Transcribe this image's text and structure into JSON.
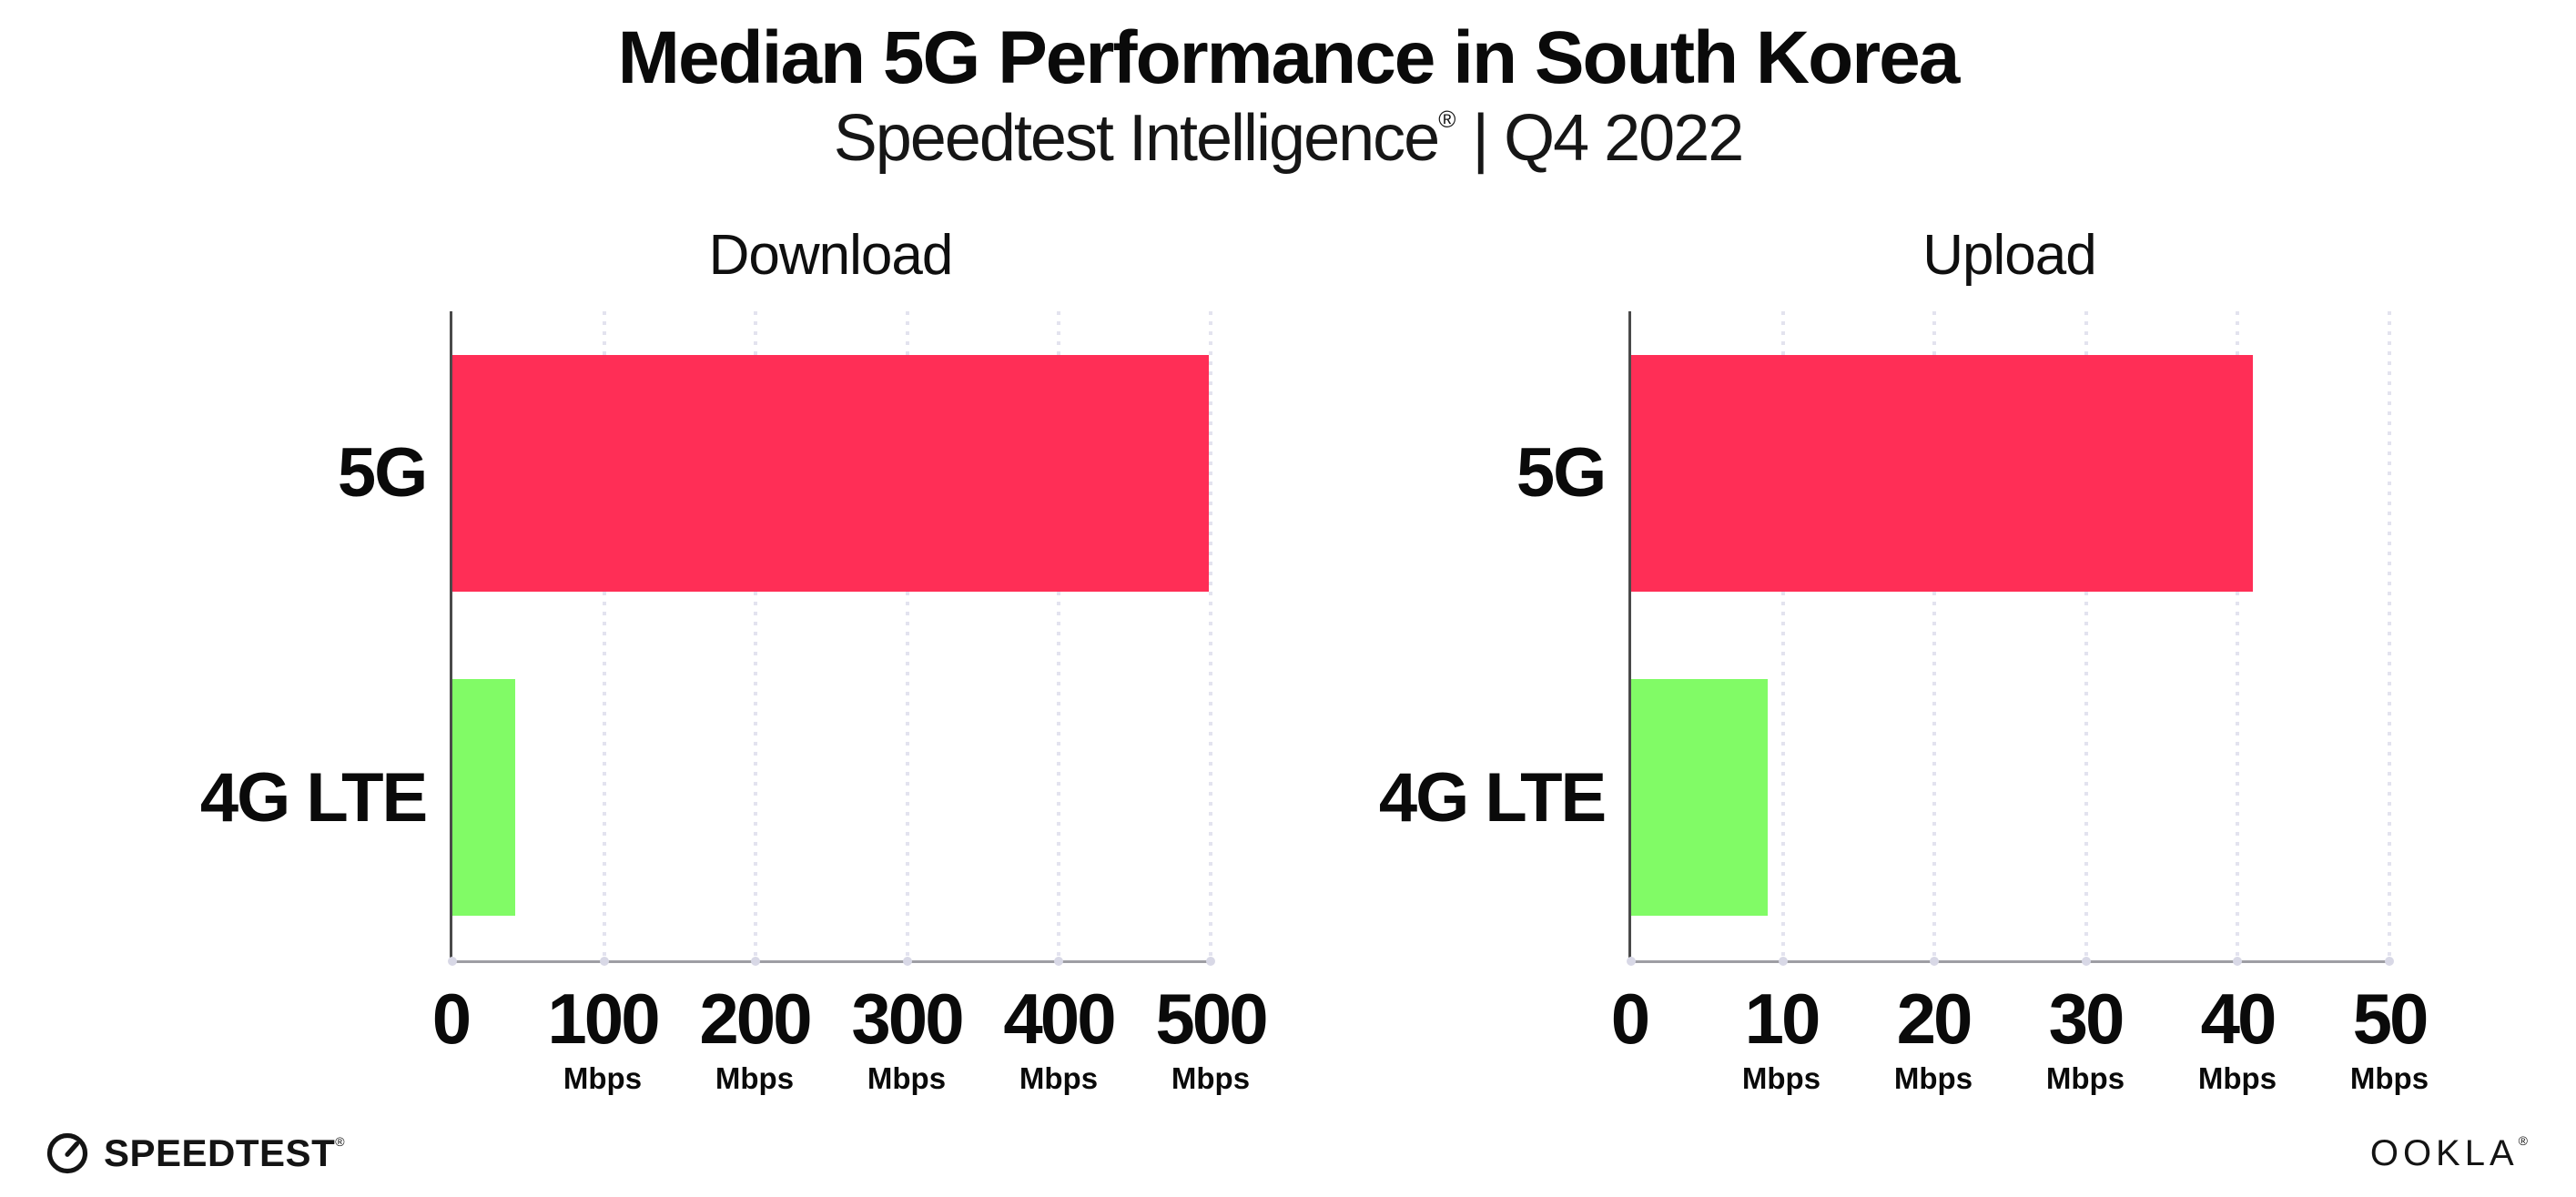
{
  "header": {
    "title": "Median 5G Performance in South Korea",
    "subtitle_brand": "Speedtest Intelligence",
    "subtitle_reg": "®",
    "subtitle_rest": " | Q4 2022"
  },
  "colors": {
    "bar_5g": "#FF2E56",
    "bar_4g_lte": "#81FB66",
    "gridline": "#E3E3EF",
    "x_axis": "#9E9EA4",
    "y_axis": "#4A4A4A",
    "background": "#FFFFFF",
    "text": "#0A0A0A"
  },
  "chart_data": [
    {
      "type": "bar",
      "orientation": "horizontal",
      "title": "Download",
      "categories": [
        "5G",
        "4G LTE"
      ],
      "values": [
        499,
        41
      ],
      "unit": "Mbps",
      "xlim": [
        0,
        500
      ],
      "ticks": [
        0,
        100,
        200,
        300,
        400,
        500
      ],
      "colors": [
        "#FF2E56",
        "#81FB66"
      ],
      "grid": "dotted-vertical",
      "legend": "none"
    },
    {
      "type": "bar",
      "orientation": "horizontal",
      "title": "Upload",
      "categories": [
        "5G",
        "4G LTE"
      ],
      "values": [
        41,
        9
      ],
      "unit": "Mbps",
      "xlim": [
        0,
        50
      ],
      "ticks": [
        0,
        10,
        20,
        30,
        40,
        50
      ],
      "colors": [
        "#FF2E56",
        "#81FB66"
      ],
      "grid": "dotted-vertical",
      "legend": "none"
    }
  ],
  "footer": {
    "speedtest_label": "SPEEDTEST",
    "speedtest_mark": "®",
    "ookla_label": "OOKLA",
    "ookla_mark": "®"
  }
}
